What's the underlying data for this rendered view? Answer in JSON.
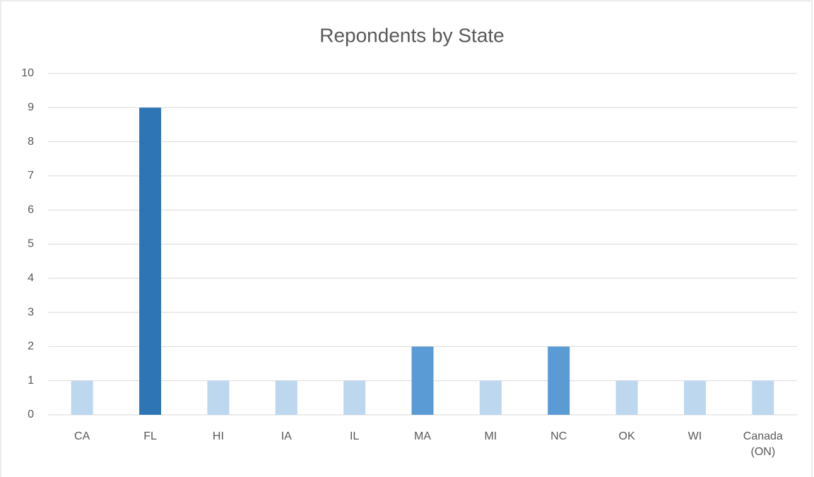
{
  "chart_data": {
    "type": "bar",
    "title": "Repondents by State",
    "categories": [
      "CA",
      "FL",
      "HI",
      "IA",
      "IL",
      "MA",
      "MI",
      "NC",
      "OK",
      "WI",
      "Canada (ON)"
    ],
    "values": [
      1,
      9,
      1,
      1,
      1,
      2,
      1,
      2,
      1,
      1,
      1
    ],
    "colors": [
      "#bdd7ee",
      "#2e75b6",
      "#bdd7ee",
      "#bdd7ee",
      "#bdd7ee",
      "#5b9bd5",
      "#bdd7ee",
      "#5b9bd5",
      "#bdd7ee",
      "#bdd7ee",
      "#bdd7ee"
    ],
    "ylim": [
      0,
      10
    ],
    "yticks": [
      0,
      1,
      2,
      3,
      4,
      5,
      6,
      7,
      8,
      9,
      10
    ],
    "grid": true
  }
}
